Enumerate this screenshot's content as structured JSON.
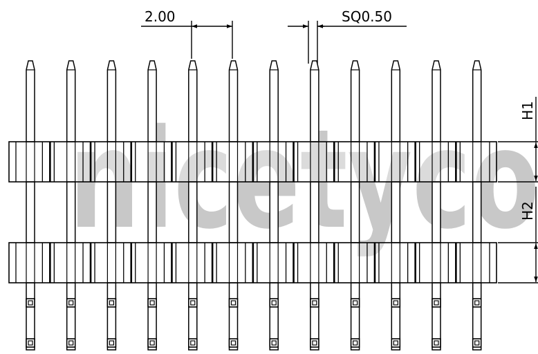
{
  "watermark": {
    "text": "nicetyco",
    "color": "#c8c8c8"
  },
  "dimensions": {
    "pitch_label": "2.00",
    "pin_size_label": "SQ0.50",
    "h1_label": "H1",
    "h2_label": "H2"
  },
  "pins": {
    "count": 12
  },
  "colors": {
    "line": "#000000",
    "background": "#ffffff"
  }
}
